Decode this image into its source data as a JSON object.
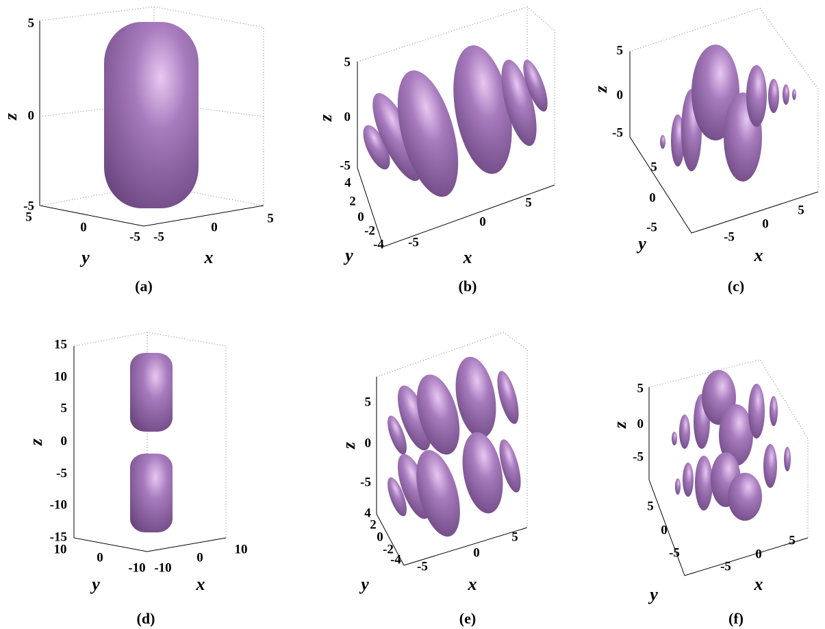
{
  "panels": [
    {
      "label": "(a)",
      "x_label": "x",
      "y_label": "y",
      "z_label": "z",
      "xticks": [
        -5,
        0,
        5
      ],
      "yticks": [
        5,
        0,
        -5
      ],
      "zticks": [
        5,
        0,
        -5
      ]
    },
    {
      "label": "(b)",
      "x_label": "x",
      "y_label": "y",
      "z_label": "z",
      "xticks": [
        -5,
        0,
        5
      ],
      "yticks": [
        4,
        2,
        0,
        -2,
        -4
      ],
      "zticks": [
        5,
        0,
        -5
      ]
    },
    {
      "label": "(c)",
      "x_label": "x",
      "y_label": "y",
      "z_label": "z",
      "xticks": [
        -5,
        0,
        5
      ],
      "yticks": [
        5,
        0,
        -5
      ],
      "zticks": [
        5,
        0,
        -5
      ]
    },
    {
      "label": "(d)",
      "x_label": "x",
      "y_label": "y",
      "z_label": "z",
      "xticks": [
        -10,
        0,
        10
      ],
      "yticks": [
        10,
        0,
        -10
      ],
      "zticks": [
        15,
        10,
        5,
        0,
        -5,
        -10,
        -15
      ]
    },
    {
      "label": "(e)",
      "x_label": "x",
      "y_label": "y",
      "z_label": "z",
      "xticks": [
        -5,
        0,
        5
      ],
      "yticks": [
        4,
        2,
        0,
        -2,
        -4
      ],
      "zticks": [
        5,
        0,
        -5
      ]
    },
    {
      "label": "(f)",
      "x_label": "x",
      "y_label": "y",
      "z_label": "z",
      "xticks": [
        -5,
        0,
        5
      ],
      "yticks": [
        5,
        0,
        -5
      ],
      "zticks": [
        5,
        0,
        -5
      ]
    }
  ]
}
